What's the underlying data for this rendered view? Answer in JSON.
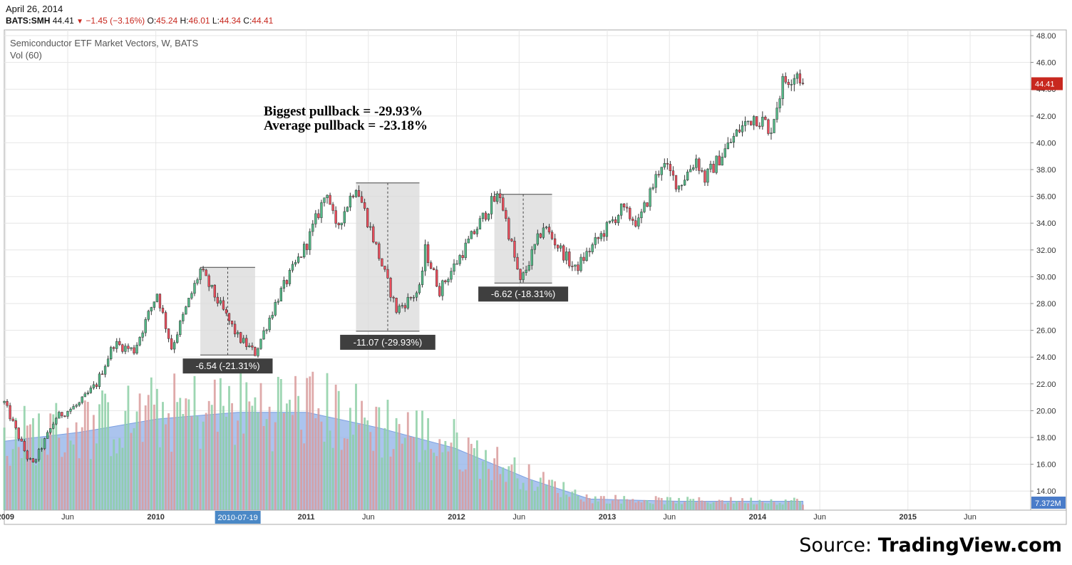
{
  "header": {
    "date": "April 26, 2014",
    "symbol": "BATS:SMH",
    "last": "44.41",
    "change": "−1.45 (−3.16%)",
    "open_label": "O:",
    "open": "45.24",
    "high_label": "H:",
    "high": "46.01",
    "low_label": "L:",
    "low": "44.34",
    "close_label": "C:",
    "close": "44.41"
  },
  "legend": {
    "title": "Semiconductor ETF Market Vectors, W, BATS",
    "volume": "Vol (60)"
  },
  "annotations": {
    "line1": "Biggest pullback = -29.93%",
    "line2": "Average pullback = -23.18%"
  },
  "source": {
    "prefix": "Source: ",
    "brand": "TradingView.com"
  },
  "colors": {
    "up": "#53b987",
    "down": "#eb4d5c",
    "wick": "#333333",
    "vol_up": "#8ccfa4",
    "vol_down": "#d99b9b",
    "vol_ma": "#8fb0e8",
    "grid": "#e6e6e6",
    "box": "#d9d9d9",
    "label_bg": "#3f3f3f",
    "price_tag": "#c8281f",
    "vol_tag": "#4a7cc9",
    "crosshair_tag": "#4a88c6"
  },
  "chart_data": {
    "type": "candlestick",
    "x_unit": "weeks",
    "x_axis": {
      "ticks": [
        {
          "label": "2009",
          "date": "2009-01"
        },
        {
          "label": "Jun",
          "date": "2009-06"
        },
        {
          "label": "2010",
          "date": "2010-01"
        },
        {
          "label": "2011",
          "date": "2011-01"
        },
        {
          "label": "Jun",
          "date": "2011-06"
        },
        {
          "label": "2012",
          "date": "2012-01"
        },
        {
          "label": "Jun",
          "date": "2012-06"
        },
        {
          "label": "2013",
          "date": "2013-01"
        },
        {
          "label": "Jun",
          "date": "2013-06"
        },
        {
          "label": "2014",
          "date": "2014-01"
        },
        {
          "label": "Jun",
          "date": "2014-06"
        },
        {
          "label": "2015",
          "date": "2015-01"
        },
        {
          "label": "Jun",
          "date": "2015-06"
        }
      ],
      "crosshair_label": "2010-07-19",
      "crosshair_date": "2010-07-19"
    },
    "y_axis": {
      "ticks": [
        "48.00",
        "46.00",
        "44.00",
        "42.00",
        "40.00",
        "38.00",
        "36.00",
        "34.00",
        "32.00",
        "30.00",
        "28.00",
        "26.00",
        "24.00",
        "22.00",
        "20.00",
        "18.00",
        "16.00",
        "14.00"
      ],
      "ylim": [
        13,
        48
      ],
      "last_price_tag": "44.41",
      "volume_tag": "7.372M"
    },
    "price_path": [
      [
        "2008-12-29",
        20.6
      ],
      [
        "2009-02-23",
        16.5
      ],
      [
        "2009-03-09",
        16.0
      ],
      [
        "2009-05-04",
        19.5
      ],
      [
        "2009-06-29",
        20.5
      ],
      [
        "2009-08-10",
        22.0
      ],
      [
        "2009-09-21",
        25.0
      ],
      [
        "2009-11-09",
        24.5
      ],
      [
        "2010-01-04",
        28.8
      ],
      [
        "2010-02-08",
        24.7
      ],
      [
        "2010-04-19",
        30.5
      ],
      [
        "2010-07-19",
        25.5
      ],
      [
        "2010-08-30",
        24.3
      ],
      [
        "2010-10-25",
        28.5
      ],
      [
        "2011-01-03",
        32.5
      ],
      [
        "2011-02-21",
        36.5
      ],
      [
        "2011-03-14",
        33.5
      ],
      [
        "2011-05-02",
        36.9
      ],
      [
        "2011-08-08",
        27.5
      ],
      [
        "2011-10-03",
        29.0
      ],
      [
        "2011-10-17",
        32.0
      ],
      [
        "2011-11-21",
        29.0
      ],
      [
        "2012-01-09",
        31.5
      ],
      [
        "2012-03-26",
        35.5
      ],
      [
        "2012-04-16",
        36.1
      ],
      [
        "2012-06-04",
        29.5
      ],
      [
        "2012-07-30",
        33.8
      ],
      [
        "2012-10-15",
        30.5
      ],
      [
        "2012-11-19",
        32.0
      ],
      [
        "2013-02-04",
        35.0
      ],
      [
        "2013-03-18",
        34.0
      ],
      [
        "2013-05-13",
        38.5
      ],
      [
        "2013-06-24",
        36.8
      ],
      [
        "2013-08-05",
        38.8
      ],
      [
        "2013-08-26",
        37.3
      ],
      [
        "2013-11-18",
        41.0
      ],
      [
        "2013-12-23",
        42.0
      ],
      [
        "2014-01-20",
        41.5
      ],
      [
        "2014-01-27",
        40.4
      ],
      [
        "2014-03-03",
        44.5
      ],
      [
        "2014-04-07",
        45.3
      ],
      [
        "2014-04-21",
        44.41
      ]
    ],
    "pullbacks": [
      {
        "label": "-6.54 (-21.31%)",
        "start": "2010-04-19",
        "end": "2010-08-30",
        "high": 30.7,
        "low": 24.16
      },
      {
        "label": "-11.07 (-29.93%)",
        "start": "2011-05-02",
        "end": "2011-10-03",
        "high": 37.0,
        "low": 25.93
      },
      {
        "label": "-6.62 (-18.31%)",
        "start": "2012-04-02",
        "end": "2012-08-20",
        "high": 36.15,
        "low": 29.53
      }
    ],
    "volume": {
      "ma_path": [
        [
          "2008-12-29",
          0.31
        ],
        [
          "2009-06-29",
          0.35
        ],
        [
          "2010-01-04",
          0.41
        ],
        [
          "2010-07-19",
          0.44
        ],
        [
          "2011-01-03",
          0.44
        ],
        [
          "2011-06-27",
          0.37
        ],
        [
          "2011-12-26",
          0.28
        ],
        [
          "2012-06-25",
          0.14
        ],
        [
          "2012-11-19",
          0.05
        ],
        [
          "2013-06-24",
          0.04
        ],
        [
          "2014-04-21",
          0.04
        ]
      ]
    }
  }
}
